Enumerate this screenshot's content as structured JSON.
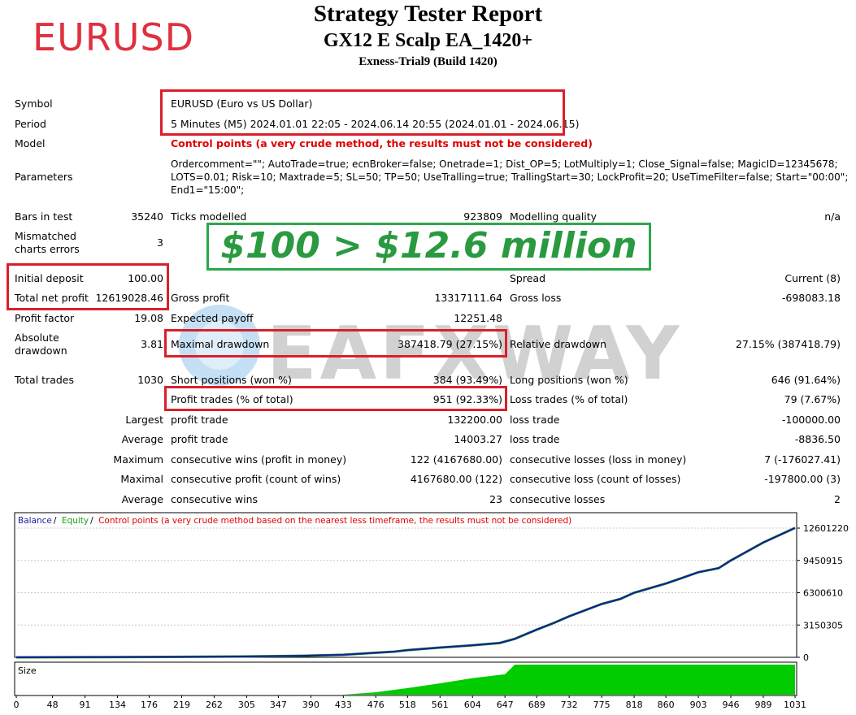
{
  "header": {
    "title": "Strategy Tester Report",
    "subtitle": "GX12 E Scalp EA_1420+",
    "server": "Exness-Trial9 (Build 1420)",
    "annotation": "EURUSD"
  },
  "promo": "$100 > $12.6 million",
  "watermark": "EAFXWAY",
  "settings": {
    "symbol_label": "Symbol",
    "symbol_value": "EURUSD (Euro vs US Dollar)",
    "period_label": "Period",
    "period_value": "5 Minutes (M5) 2024.01.01 22:05 - 2024.06.14 20:55 (2024.01.01 - 2024.06.15)",
    "model_label": "Model",
    "model_value": "Control points (a very crude method, the results must not be considered)",
    "parameters_label": "Parameters",
    "parameters_line1": "Ordercomment=\"\"; AutoTrade=true; ecnBroker=false; Onetrade=1; Dist_OP=5; LotMultiply=1; Close_Signal=false; MagicID=12345678;",
    "parameters_line2": "LOTS=0.01; Risk=10; Maxtrade=5; SL=50; TP=50; UseTralling=true; TrallingStart=30; LockProfit=20; UseTimeFilter=false; Start=\"00:00\";",
    "parameters_line3": "End1=\"15:00\";"
  },
  "stats": {
    "bars_label": "Bars in test",
    "bars_value": "35240",
    "ticks_label": "Ticks modelled",
    "ticks_value": "923809",
    "quality_label": "Modelling quality",
    "quality_value": "n/a",
    "mismatch_label1": "Mismatched",
    "mismatch_label2": "charts errors",
    "mismatch_value": "3",
    "deposit_label": "Initial deposit",
    "deposit_value": "100.00",
    "spread_label": "Spread",
    "spread_value": "Current (8)",
    "netprofit_label": "Total net profit",
    "netprofit_value": "12619028.46",
    "grossprofit_label": "Gross profit",
    "grossprofit_value": "13317111.64",
    "grossloss_label": "Gross loss",
    "grossloss_value": "-698083.18",
    "pf_label": "Profit factor",
    "pf_value": "19.08",
    "ep_label": "Expected payoff",
    "ep_value": "12251.48",
    "absdd_label1": "Absolute",
    "absdd_label2": "drawdown",
    "absdd_value": "3.81",
    "maxdd_label": "Maximal drawdown",
    "maxdd_value": "387418.79 (27.15%)",
    "reldd_label": "Relative drawdown",
    "reldd_value": "27.15% (387418.79)",
    "trades_label": "Total trades",
    "trades_value": "1030",
    "short_label": "Short positions (won %)",
    "short_value": "384 (93.49%)",
    "long_label": "Long positions (won %)",
    "long_value": "646 (91.64%)",
    "profittrades_label": "Profit trades (% of total)",
    "profittrades_value": "951 (92.33%)",
    "losstrades_label": "Loss trades (% of total)",
    "losstrades_value": "79 (7.67%)",
    "largest_label": "Largest",
    "largest_pt_label": "profit trade",
    "largest_pt_value": "132200.00",
    "largest_lt_label": "loss trade",
    "largest_lt_value": "-100000.00",
    "average_label": "Average",
    "average_pt_label": "profit trade",
    "average_pt_value": "14003.27",
    "average_lt_label": "loss trade",
    "average_lt_value": "-8836.50",
    "maximum_label": "Maximum",
    "max_cw_label": "consecutive wins (profit in money)",
    "max_cw_value": "122 (4167680.00)",
    "max_cl_label": "consecutive losses (loss in money)",
    "max_cl_value": "7 (-176027.41)",
    "maximal_label": "Maximal",
    "maximal_cp_label": "consecutive profit (count of wins)",
    "maximal_cp_value": "4167680.00 (122)",
    "maximal_cl_label": "consecutive loss (count of losses)",
    "maximal_cl_value": "-197800.00 (3)",
    "average2_label": "Average",
    "avg_cw_label": "consecutive wins",
    "avg_cw_value": "23",
    "avg_cl_label": "consecutive losses",
    "avg_cl_value": "2"
  },
  "chart_data": {
    "type": "line",
    "legend": [
      {
        "name": "Balance",
        "color": "#1a1aa0"
      },
      {
        "name": "Equity",
        "color": "#1aa01a"
      },
      {
        "name": "Control points (a very crude method based on the nearest less timeframe, the results must not be considered)",
        "color": "#e00000"
      }
    ],
    "y_ticks": [
      "12601220",
      "9450915",
      "6300610",
      "3150305",
      "0"
    ],
    "ylim": [
      0,
      12601220
    ],
    "x_ticks": [
      "0",
      "48",
      "91",
      "134",
      "176",
      "219",
      "262",
      "305",
      "347",
      "390",
      "433",
      "476",
      "518",
      "561",
      "604",
      "647",
      "689",
      "732",
      "775",
      "818",
      "860",
      "903",
      "946",
      "989",
      "1031"
    ],
    "xlim": [
      0,
      1031
    ],
    "size_label": "Size",
    "balance": {
      "x": [
        0,
        100,
        200,
        300,
        380,
        433,
        476,
        500,
        518,
        561,
        600,
        640,
        660,
        689,
        710,
        732,
        775,
        800,
        818,
        860,
        880,
        903,
        930,
        946,
        989,
        1031
      ],
      "y": [
        100,
        20000,
        40000,
        80000,
        150000,
        250000,
        450000,
        550000,
        700000,
        950000,
        1150000,
        1400000,
        1800000,
        2700000,
        3300000,
        4000000,
        5200000,
        5700000,
        6300000,
        7200000,
        7700000,
        8300000,
        8700000,
        9450000,
        11200000,
        12619028
      ]
    },
    "size": {
      "x": [
        0,
        433,
        476,
        518,
        561,
        604,
        647,
        660,
        1031
      ],
      "y": [
        0,
        0,
        0.08,
        0.22,
        0.38,
        0.55,
        0.68,
        1,
        1
      ]
    },
    "colors": {
      "balance": "#1a1aa0",
      "equity": "#1aa01a",
      "size": "#00cc00",
      "control": "#e00000"
    }
  }
}
